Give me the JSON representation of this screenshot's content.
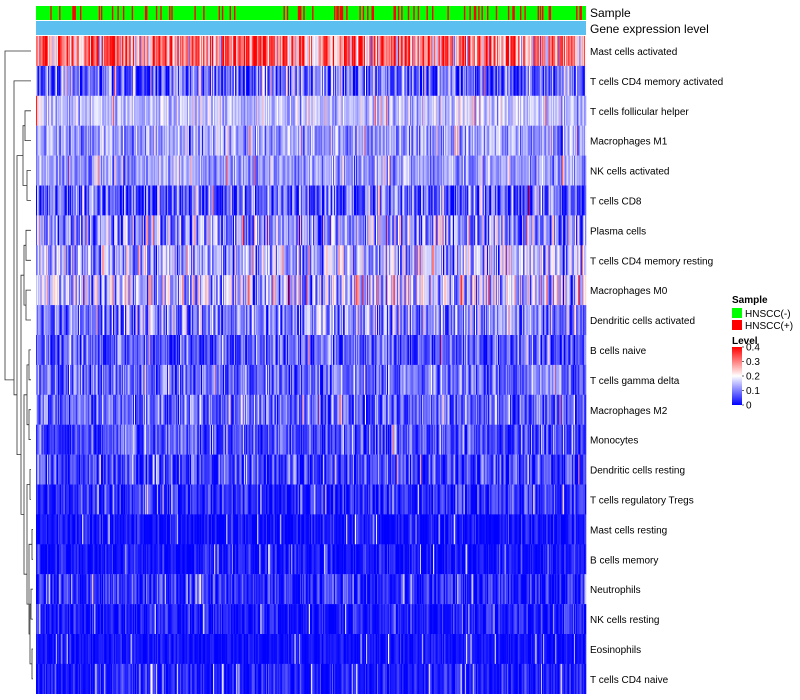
{
  "chart_data": {
    "type": "heatmap",
    "title": "",
    "xlabel": "",
    "ylabel": "",
    "n_samples": 500,
    "annotation_tracks": [
      {
        "name": "Sample",
        "label": "Sample"
      },
      {
        "name": "Gene expression level",
        "label": "Gene expression level"
      }
    ],
    "rows": [
      {
        "name": "Mast cells activated",
        "mean": 0.3,
        "spread": 0.1
      },
      {
        "name": "T cells CD4 memory activated",
        "mean": 0.08,
        "spread": 0.07
      },
      {
        "name": "T cells follicular helper",
        "mean": 0.15,
        "spread": 0.04
      },
      {
        "name": "Macrophages M1",
        "mean": 0.12,
        "spread": 0.05
      },
      {
        "name": "NK cells activated",
        "mean": 0.12,
        "spread": 0.04
      },
      {
        "name": "T cells CD8",
        "mean": 0.07,
        "spread": 0.07
      },
      {
        "name": "Plasma cells",
        "mean": 0.12,
        "spread": 0.08
      },
      {
        "name": "T cells CD4 memory resting",
        "mean": 0.14,
        "spread": 0.07
      },
      {
        "name": "Macrophages M0",
        "mean": 0.15,
        "spread": 0.08
      },
      {
        "name": "Dendritic cells activated",
        "mean": 0.1,
        "spread": 0.07
      },
      {
        "name": "B cells naive",
        "mean": 0.07,
        "spread": 0.05
      },
      {
        "name": "T cells gamma delta",
        "mean": 0.08,
        "spread": 0.05
      },
      {
        "name": "Macrophages M2",
        "mean": 0.08,
        "spread": 0.05
      },
      {
        "name": "Monocytes",
        "mean": 0.06,
        "spread": 0.05
      },
      {
        "name": "Dendritic cells resting",
        "mean": 0.05,
        "spread": 0.05
      },
      {
        "name": "T cells regulatory  Tregs",
        "mean": 0.03,
        "spread": 0.04
      },
      {
        "name": "Mast cells resting",
        "mean": 0.01,
        "spread": 0.03
      },
      {
        "name": "B cells memory",
        "mean": 0.01,
        "spread": 0.03
      },
      {
        "name": "Neutrophils",
        "mean": 0.03,
        "spread": 0.04
      },
      {
        "name": "NK cells resting",
        "mean": 0.02,
        "spread": 0.03
      },
      {
        "name": "Eosinophils",
        "mean": 0.01,
        "spread": 0.02
      },
      {
        "name": "T cells CD4 naive",
        "mean": 0.02,
        "spread": 0.03
      }
    ],
    "sample_legend": {
      "title": "Sample",
      "items": [
        {
          "label": "HNSCC(-)",
          "color": "#00ff00"
        },
        {
          "label": "HNSCC(+)",
          "color": "#ff0000"
        }
      ]
    },
    "level_legend": {
      "title": "Level",
      "colors": [
        "#0000ff",
        "#ffffff",
        "#ff0000"
      ],
      "range": [
        0,
        0.4
      ],
      "ticks": [
        {
          "value": 0.4,
          "label": "0.4"
        },
        {
          "value": 0.3,
          "label": "0.3"
        },
        {
          "value": 0.2,
          "label": "0.2"
        },
        {
          "value": 0.1,
          "label": "0.1"
        },
        {
          "value": 0,
          "label": "0"
        }
      ]
    },
    "gene_expression_color": "#5bc0f0"
  }
}
